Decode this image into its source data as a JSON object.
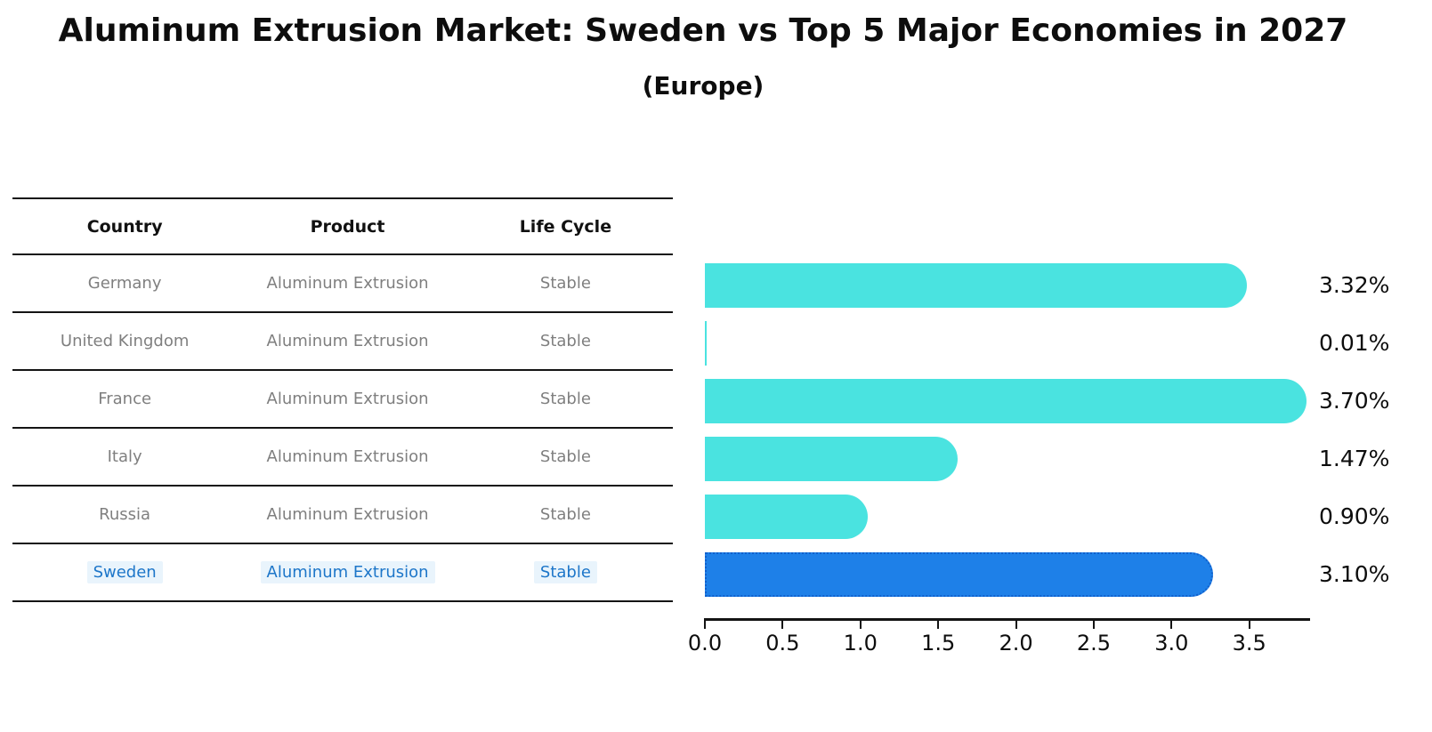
{
  "header": {
    "title": "Aluminum Extrusion Market: Sweden vs Top 5 Major Economies in 2027",
    "subtitle": "(Europe)"
  },
  "table": {
    "columns": [
      "Country",
      "Product",
      "Life Cycle"
    ],
    "rows": [
      {
        "country": "Germany",
        "product": "Aluminum Extrusion",
        "life_cycle": "Stable",
        "highlight": false
      },
      {
        "country": "United Kingdom",
        "product": "Aluminum Extrusion",
        "life_cycle": "Stable",
        "highlight": false
      },
      {
        "country": "France",
        "product": "Aluminum Extrusion",
        "life_cycle": "Stable",
        "highlight": false
      },
      {
        "country": "Italy",
        "product": "Aluminum Extrusion",
        "life_cycle": "Stable",
        "highlight": false
      },
      {
        "country": "Russia",
        "product": "Aluminum Extrusion",
        "life_cycle": "Stable",
        "highlight": false
      },
      {
        "country": "Sweden",
        "product": "Aluminum Extrusion",
        "life_cycle": "Stable",
        "highlight": true
      }
    ]
  },
  "chart_data": {
    "type": "bar",
    "orientation": "horizontal",
    "title": "Aluminum Extrusion Market: Sweden vs Top 5 Major Economies in 2027",
    "subtitle": "(Europe)",
    "categories": [
      "Germany",
      "United Kingdom",
      "France",
      "Italy",
      "Russia",
      "Sweden"
    ],
    "values": [
      3.32,
      0.01,
      3.7,
      1.47,
      0.9,
      3.1
    ],
    "value_labels": [
      "3.32%",
      "0.01%",
      "3.70%",
      "1.47%",
      "0.90%",
      "3.10%"
    ],
    "highlight_category": "Sweden",
    "xlabel": "",
    "ylabel": "",
    "xlim": [
      0,
      3.885
    ],
    "xticks": [
      0.0,
      0.5,
      1.0,
      1.5,
      2.0,
      2.5,
      3.0,
      3.5
    ],
    "xtick_labels": [
      "0.0",
      "0.5",
      "1.0",
      "1.5",
      "2.0",
      "2.5",
      "3.0",
      "3.5"
    ],
    "grid": false,
    "legend": "none",
    "colors": {
      "bar": "#4ae3e0",
      "highlight_bar": "#1e80e8",
      "highlight_border": "#1160cc",
      "highlight_text": "#1d76c9",
      "row_text": "#7f7f7f",
      "header_text": "#111111",
      "axis": "#141414"
    }
  }
}
